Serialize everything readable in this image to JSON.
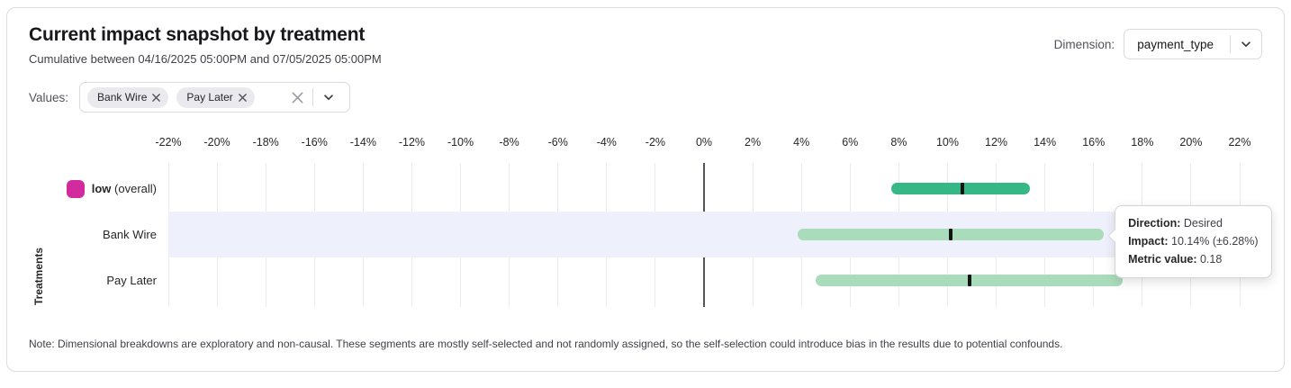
{
  "card": {
    "title": "Current impact snapshot by treatment",
    "subtitle": "Cumulative between 04/16/2025 05:00PM and 07/05/2025 05:00PM",
    "note": "Note: Dimensional breakdowns are exploratory and non-causal. These segments are mostly self-selected and not randomly assigned, so the self-selection could introduce bias in the results due to potential confounds."
  },
  "dimension": {
    "label": "Dimension:",
    "selected_value": "payment_type"
  },
  "values_filter": {
    "label": "Values:",
    "chips": [
      {
        "label": "Bank Wire"
      },
      {
        "label": "Pay Later"
      }
    ]
  },
  "tooltip": {
    "lines": [
      {
        "label": "Direction:",
        "value": "Desired"
      },
      {
        "label": "Impact:",
        "value": "10.14% (±6.28%)"
      },
      {
        "label": "Metric value:",
        "value": "0.18"
      }
    ]
  },
  "colors": {
    "overall_bar": "#35b786",
    "segment_bar": "#a9dcba",
    "overall_swatch": "#d12b9e",
    "center_tick": "#141414",
    "highlight_band": "#eef0fb",
    "gridline": "#ebebee",
    "zero_line": "#55555c"
  },
  "chart_data": {
    "type": "bar",
    "orientation": "horizontal",
    "title": "Current impact snapshot by treatment",
    "ylabel": "Treatments",
    "grid": true,
    "legend_position": "none",
    "x_axis": {
      "min": -22,
      "max": 22,
      "step": 2,
      "unit": "%",
      "tick_labels": [
        "-22%",
        "-20%",
        "-18%",
        "-16%",
        "-14%",
        "-12%",
        "-10%",
        "-8%",
        "-6%",
        "-4%",
        "-2%",
        "0%",
        "2%",
        "4%",
        "6%",
        "8%",
        "10%",
        "12%",
        "14%",
        "16%",
        "18%",
        "20%",
        "22%"
      ]
    },
    "rows": [
      {
        "label": "low",
        "label_suffix": " (overall)",
        "emphasis": true,
        "swatch": true,
        "impact_pct": 10.6,
        "ci_low_pct": 7.7,
        "ci_high_pct": 13.4,
        "bar": "overall_bar"
      },
      {
        "label": "Bank Wire",
        "emphasis": false,
        "swatch": false,
        "highlighted": true,
        "impact_pct": 10.14,
        "ci_low_pct": 3.86,
        "ci_high_pct": 16.42,
        "bar": "segment_bar"
      },
      {
        "label": "Pay Later",
        "emphasis": false,
        "swatch": false,
        "impact_pct": 10.9,
        "ci_low_pct": 4.6,
        "ci_high_pct": 17.2,
        "bar": "segment_bar"
      }
    ]
  }
}
